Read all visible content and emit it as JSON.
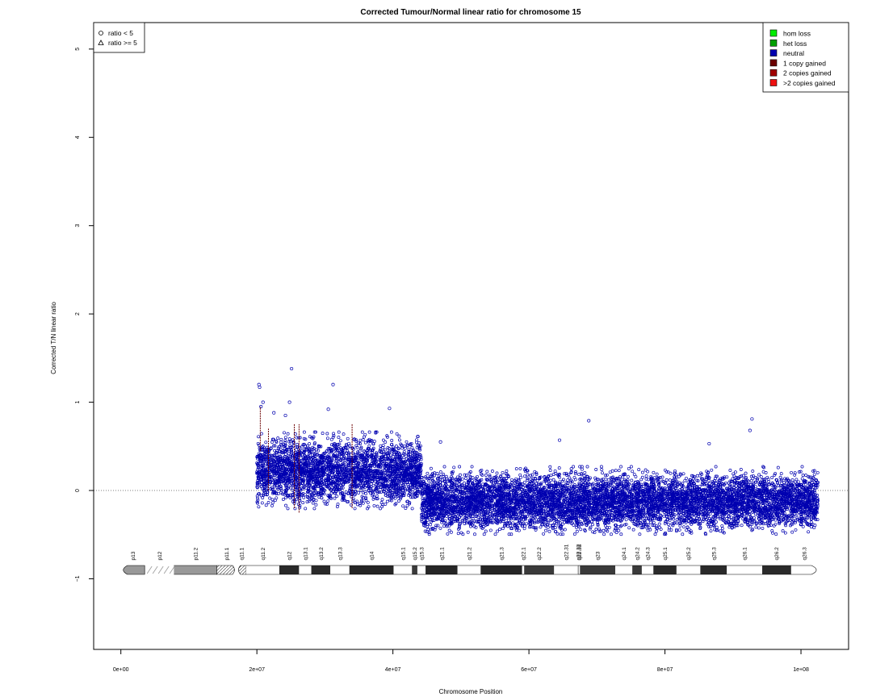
{
  "chart_data": {
    "type": "scatter",
    "title": "Corrected Tumour/Normal linear ratio for chromosome  15",
    "xlabel": "Chromosome Position",
    "ylabel": "Corrected T/N linear ratio",
    "xlim": [
      -4000000,
      107000000
    ],
    "ylim": [
      -1.8,
      5.3
    ],
    "x_ticks": [
      {
        "value": 0,
        "label": "0e+00"
      },
      {
        "value": 20000000,
        "label": "2e+07"
      },
      {
        "value": 40000000,
        "label": "4e+07"
      },
      {
        "value": 60000000,
        "label": "6e+07"
      },
      {
        "value": 80000000,
        "label": "8e+07"
      },
      {
        "value": 100000000,
        "label": "1e+08"
      }
    ],
    "y_ticks": [
      {
        "value": -1,
        "label": "−1"
      },
      {
        "value": 0,
        "label": "0"
      },
      {
        "value": 1,
        "label": "1"
      },
      {
        "value": 2,
        "label": "2"
      },
      {
        "value": 3,
        "label": "3"
      },
      {
        "value": 4,
        "label": "4"
      },
      {
        "value": 5,
        "label": "5"
      }
    ],
    "reference_line_y": 0,
    "shape_legend": {
      "position": "top-left",
      "entries": [
        {
          "symbol": "circle",
          "label": "ratio < 5"
        },
        {
          "symbol": "triangle",
          "label": "ratio >= 5"
        }
      ]
    },
    "color_legend": {
      "position": "top-right",
      "entries": [
        {
          "label": "hom loss",
          "color": "#00ee00"
        },
        {
          "label": "het loss",
          "color": "#00a000"
        },
        {
          "label": "neutral",
          "color": "#0000b0"
        },
        {
          "label": "1 copy gained",
          "color": "#6b0000"
        },
        {
          "label": "2 copies gained",
          "color": "#a00000"
        },
        {
          "label": ">2 copies gained",
          "color": "#ee1010"
        }
      ]
    },
    "segments": [
      {
        "start": 20000000,
        "end": 44200000,
        "ratio_center": 0.22,
        "ratio_spread": 0.34,
        "status": "neutral"
      },
      {
        "start": 44200000,
        "end": 102500000,
        "ratio_center": -0.12,
        "ratio_spread": 0.3,
        "status": "neutral"
      }
    ],
    "outliers": [
      {
        "x": 20300000,
        "y": 1.2
      },
      {
        "x": 20400000,
        "y": 1.17
      },
      {
        "x": 20600000,
        "y": 0.95
      },
      {
        "x": 20900000,
        "y": 1.0
      },
      {
        "x": 22500000,
        "y": 0.88
      },
      {
        "x": 24200000,
        "y": 0.85
      },
      {
        "x": 24800000,
        "y": 1.0
      },
      {
        "x": 25100000,
        "y": 1.38
      },
      {
        "x": 31200000,
        "y": 1.2
      },
      {
        "x": 30500000,
        "y": 0.92
      },
      {
        "x": 39500000,
        "y": 0.93
      },
      {
        "x": 47000000,
        "y": 0.55
      },
      {
        "x": 64500000,
        "y": 0.57
      },
      {
        "x": 68800000,
        "y": 0.79
      },
      {
        "x": 92800000,
        "y": 0.81
      },
      {
        "x": 92500000,
        "y": 0.68
      },
      {
        "x": 86500000,
        "y": 0.53
      }
    ],
    "gained_lines": [
      {
        "x": 20500000,
        "y1": 0.45,
        "y2": 0.95,
        "status": "1 copy gained"
      },
      {
        "x": 21700000,
        "y1": 0.0,
        "y2": 0.7,
        "status": "1 copy gained"
      },
      {
        "x": 25500000,
        "y1": -0.2,
        "y2": 0.75,
        "status": "1 copy gained"
      },
      {
        "x": 26200000,
        "y1": -0.25,
        "y2": 0.75,
        "status": "1 copy gained"
      },
      {
        "x": 34000000,
        "y1": -0.2,
        "y2": 0.75,
        "status": "1 copy gained"
      }
    ],
    "ideogram": {
      "y": -0.9,
      "bands": [
        {
          "name": "p13",
          "start": 0,
          "end": 3500000,
          "stain": "gvar"
        },
        {
          "name": "p12",
          "start": 3500000,
          "end": 7800000,
          "stain": "stalk"
        },
        {
          "name": "p11.2",
          "start": 7800000,
          "end": 14100000,
          "stain": "gvar"
        },
        {
          "name": "p11.1",
          "start": 14100000,
          "end": 17000000,
          "stain": "acen"
        },
        {
          "name": "q11.1",
          "start": 17000000,
          "end": 18400000,
          "stain": "acen"
        },
        {
          "name": "q11.2",
          "start": 18400000,
          "end": 23300000,
          "stain": "gneg"
        },
        {
          "name": "q12",
          "start": 23300000,
          "end": 26200000,
          "stain": "gpos50"
        },
        {
          "name": "q13.1",
          "start": 26200000,
          "end": 28000000,
          "stain": "gneg"
        },
        {
          "name": "q13.2",
          "start": 28000000,
          "end": 30800000,
          "stain": "gpos50"
        },
        {
          "name": "q13.3",
          "start": 30800000,
          "end": 33600000,
          "stain": "gneg"
        },
        {
          "name": "q14",
          "start": 33600000,
          "end": 40100000,
          "stain": "gpos75"
        },
        {
          "name": "q15.1",
          "start": 40100000,
          "end": 42800000,
          "stain": "gneg"
        },
        {
          "name": "q15.2",
          "start": 42800000,
          "end": 43600000,
          "stain": "gpos25"
        },
        {
          "name": "q15.3",
          "start": 43600000,
          "end": 44800000,
          "stain": "gneg"
        },
        {
          "name": "q21.1",
          "start": 44800000,
          "end": 49500000,
          "stain": "gpos75"
        },
        {
          "name": "q21.2",
          "start": 49500000,
          "end": 52900000,
          "stain": "gneg"
        },
        {
          "name": "q21.3",
          "start": 52900000,
          "end": 59000000,
          "stain": "gpos75"
        },
        {
          "name": "q22.1",
          "start": 59000000,
          "end": 59300000,
          "stain": "gneg"
        },
        {
          "name": "q22.2",
          "start": 59300000,
          "end": 63700000,
          "stain": "gpos25"
        },
        {
          "name": "q22.31",
          "start": 63700000,
          "end": 67200000,
          "stain": "gneg"
        },
        {
          "name": "q22.32",
          "start": 67200000,
          "end": 67300000,
          "stain": "gpos25"
        },
        {
          "name": "q22.33",
          "start": 67300000,
          "end": 67500000,
          "stain": "gneg"
        },
        {
          "name": "q23",
          "start": 67500000,
          "end": 72700000,
          "stain": "gpos25"
        },
        {
          "name": "q24.1",
          "start": 72700000,
          "end": 75200000,
          "stain": "gneg"
        },
        {
          "name": "q24.2",
          "start": 75200000,
          "end": 76600000,
          "stain": "gpos25"
        },
        {
          "name": "q24.3",
          "start": 76600000,
          "end": 78300000,
          "stain": "gneg"
        },
        {
          "name": "q25.1",
          "start": 78300000,
          "end": 81700000,
          "stain": "gpos50"
        },
        {
          "name": "q25.2",
          "start": 81700000,
          "end": 85200000,
          "stain": "gneg"
        },
        {
          "name": "q25.3",
          "start": 85200000,
          "end": 89100000,
          "stain": "gpos50"
        },
        {
          "name": "q26.1",
          "start": 89100000,
          "end": 94300000,
          "stain": "gneg"
        },
        {
          "name": "q26.2",
          "start": 94300000,
          "end": 98500000,
          "stain": "gpos50"
        },
        {
          "name": "q26.3",
          "start": 98500000,
          "end": 102500000,
          "stain": "gneg"
        }
      ]
    }
  }
}
